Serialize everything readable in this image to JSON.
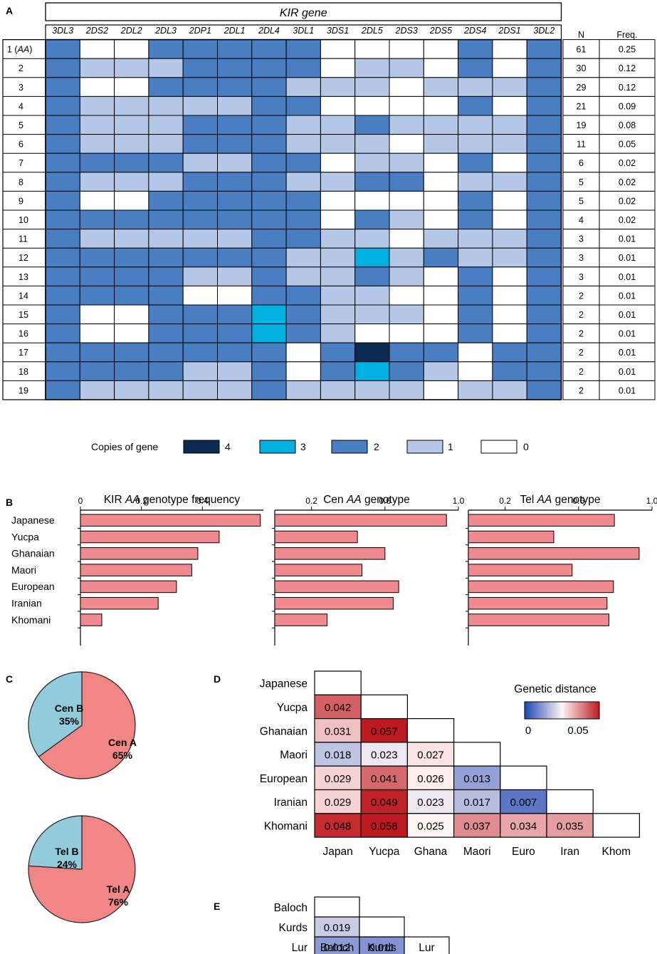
{
  "panel_labels": {
    "a": "A",
    "b": "B",
    "c": "C",
    "d": "D",
    "e": "E"
  },
  "colors": {
    "copy0": "#ffffff",
    "copy1": "#b4c7e7",
    "copy2": "#4a7ec2",
    "copy3": "#00b0e0",
    "copy4": "#0c2b52",
    "bar": "#f08a8e",
    "pie_a": "#f28585",
    "pie_b": "#92cbdb"
  },
  "chart_data": [
    {
      "type": "heatmap",
      "panel": "A",
      "title": "KIR gene",
      "genes": [
        "3DL3",
        "2DS2",
        "2DL2",
        "2DL3",
        "2DP1",
        "2DL1",
        "2DL4",
        "3DL1",
        "3DS1",
        "2DL5",
        "2DS3",
        "2DS5",
        "2DS4",
        "2DS1",
        "3DL2"
      ],
      "row_labels": [
        "1 (",
        "2",
        "3",
        "4",
        "5",
        "6",
        "7",
        "8",
        "9",
        "10",
        "11",
        "12",
        "13",
        "14",
        "15",
        "16",
        "17",
        "18",
        "19"
      ],
      "row1_italic": "AA",
      "row1_close": ")",
      "n_header": "N",
      "freq_header": "Freq.",
      "copies": [
        [
          2,
          0,
          0,
          2,
          2,
          2,
          2,
          2,
          0,
          0,
          0,
          0,
          2,
          0,
          2
        ],
        [
          2,
          1,
          1,
          1,
          2,
          2,
          2,
          2,
          0,
          1,
          1,
          0,
          2,
          0,
          2
        ],
        [
          2,
          0,
          0,
          2,
          2,
          2,
          2,
          1,
          1,
          1,
          0,
          1,
          1,
          1,
          2
        ],
        [
          2,
          1,
          1,
          1,
          1,
          1,
          2,
          2,
          0,
          0,
          0,
          0,
          2,
          0,
          2
        ],
        [
          2,
          1,
          1,
          1,
          2,
          2,
          2,
          1,
          1,
          2,
          1,
          1,
          1,
          1,
          2
        ],
        [
          2,
          1,
          1,
          1,
          2,
          2,
          2,
          1,
          1,
          1,
          0,
          1,
          1,
          1,
          2
        ],
        [
          2,
          2,
          2,
          2,
          1,
          1,
          2,
          2,
          0,
          1,
          1,
          0,
          2,
          0,
          2
        ],
        [
          2,
          1,
          1,
          1,
          2,
          2,
          2,
          1,
          1,
          2,
          2,
          0,
          1,
          1,
          2
        ],
        [
          2,
          0,
          0,
          2,
          2,
          2,
          2,
          2,
          0,
          0,
          0,
          0,
          2,
          0,
          2
        ],
        [
          2,
          2,
          2,
          2,
          2,
          2,
          2,
          2,
          0,
          2,
          1,
          0,
          2,
          0,
          2
        ],
        [
          2,
          1,
          1,
          1,
          1,
          1,
          2,
          2,
          1,
          1,
          0,
          1,
          1,
          1,
          2
        ],
        [
          2,
          2,
          2,
          2,
          2,
          2,
          2,
          1,
          1,
          3,
          1,
          2,
          1,
          1,
          2
        ],
        [
          2,
          2,
          2,
          2,
          1,
          1,
          2,
          1,
          1,
          2,
          1,
          0,
          2,
          0,
          2
        ],
        [
          2,
          2,
          2,
          2,
          0,
          0,
          2,
          2,
          1,
          1,
          0,
          0,
          2,
          0,
          2
        ],
        [
          2,
          0,
          0,
          2,
          2,
          2,
          3,
          2,
          1,
          1,
          1,
          0,
          2,
          0,
          2
        ],
        [
          2,
          0,
          0,
          2,
          2,
          2,
          3,
          2,
          1,
          0,
          0,
          0,
          2,
          0,
          2
        ],
        [
          2,
          2,
          2,
          2,
          2,
          2,
          2,
          0,
          2,
          4,
          2,
          2,
          0,
          2,
          2
        ],
        [
          2,
          2,
          2,
          2,
          1,
          1,
          2,
          0,
          2,
          3,
          2,
          1,
          0,
          2,
          2
        ],
        [
          2,
          1,
          1,
          1,
          1,
          1,
          2,
          1,
          1,
          1,
          1,
          0,
          1,
          1,
          2
        ]
      ],
      "n": [
        "61",
        "30",
        "29",
        "21",
        "19",
        "11",
        "6",
        "5",
        "5",
        "4",
        "3",
        "3",
        "3",
        "2",
        "2",
        "2",
        "2",
        "2",
        "2"
      ],
      "freq": [
        "0.25",
        "0.12",
        "0.12",
        "0.09",
        "0.08",
        "0.05",
        "0.02",
        "0.02",
        "0.02",
        "0.02",
        "0.01",
        "0.01",
        "0.01",
        "0.01",
        "0.01",
        "0.01",
        "0.01",
        "0.01",
        "0.01"
      ],
      "legend": {
        "title": "Copies of gene",
        "items": [
          {
            "label": "4",
            "value": 4
          },
          {
            "label": "3",
            "value": 3
          },
          {
            "label": "2",
            "value": 2
          },
          {
            "label": "1",
            "value": 1
          },
          {
            "label": "0",
            "value": 0
          }
        ]
      }
    },
    {
      "type": "bar",
      "panel": "B",
      "orientation": "horizontal",
      "title_pre": "KIR ",
      "title_it": "AA",
      "title_post": " genotype frequency",
      "categories": [
        "Japanese",
        "Yucpa",
        "Ghanaian",
        "Maori",
        "European",
        "Iranian",
        "Khomani"
      ],
      "values": [
        0.59,
        0.455,
        0.385,
        0.365,
        0.315,
        0.255,
        0.07
      ],
      "xlim": [
        0,
        0.6
      ],
      "ticks": [
        0,
        0.2,
        0.4
      ],
      "tick_labels": [
        "0",
        "0.2",
        "0.4"
      ]
    },
    {
      "type": "bar",
      "panel": "B",
      "orientation": "horizontal",
      "title_pre": "Cen ",
      "title_it": "AA",
      "title_post": " genotype",
      "categories": [
        "Japanese",
        "Yucpa",
        "Ghanaian",
        "Maori",
        "European",
        "Iranian",
        "Khomani"
      ],
      "values": [
        0.935,
        0.45,
        0.6,
        0.475,
        0.675,
        0.645,
        0.285
      ],
      "xlim": [
        0,
        1.0
      ],
      "ticks": [
        0.2,
        0.6,
        1.0
      ],
      "tick_labels": [
        "0.2",
        "0.6",
        "1.0"
      ]
    },
    {
      "type": "bar",
      "panel": "B",
      "orientation": "horizontal",
      "title_pre": "Tel ",
      "title_it": "AA",
      "title_post": " genotype",
      "categories": [
        "Japanese",
        "Yucpa",
        "Ghanaian",
        "Maori",
        "European",
        "Iranian",
        "Khomani"
      ],
      "values": [
        0.795,
        0.465,
        0.93,
        0.565,
        0.79,
        0.755,
        0.765
      ],
      "xlim": [
        0,
        1.0
      ],
      "ticks": [
        0.2,
        0.6,
        1.0
      ],
      "tick_labels": [
        "0.2",
        "0.6",
        "1.0"
      ]
    },
    {
      "type": "pie",
      "panel": "C",
      "labels": [
        "Cen A",
        "Cen B"
      ],
      "values": [
        65,
        35
      ],
      "value_labels": [
        "65%",
        "35%"
      ]
    },
    {
      "type": "pie",
      "panel": "C",
      "labels": [
        "Tel A",
        "Tel B"
      ],
      "values": [
        76,
        24
      ],
      "value_labels": [
        "76%",
        "24%"
      ]
    },
    {
      "type": "heatmap",
      "panel": "D",
      "title": "Genetic distance",
      "row_labels": [
        "Japanese",
        "Yucpa",
        "Ghanaian",
        "Maori",
        "European",
        "Iranian",
        "Khomani"
      ],
      "col_labels": [
        "Japan",
        "Yucpa",
        "Ghana",
        "Maori",
        "Euro",
        "Iran",
        "Khom"
      ],
      "values": [
        [],
        [
          "0.042"
        ],
        [
          "0.031",
          "0.057"
        ],
        [
          "0.018",
          "0.023",
          "0.027"
        ],
        [
          "0.029",
          "0.041",
          "0.026",
          "0.013"
        ],
        [
          "0.029",
          "0.049",
          "0.023",
          "0.017",
          "0.007"
        ],
        [
          "0.048",
          "0.058",
          "0.025",
          "0.037",
          "0.034",
          "0.035"
        ]
      ],
      "scale_min": 0,
      "scale_max": 0.05,
      "scale_mid": 0.025,
      "scale_labels": [
        "0",
        "0.05"
      ]
    },
    {
      "type": "heatmap",
      "panel": "E",
      "row_labels": [
        "Baloch",
        "Kurds",
        "Lur"
      ],
      "col_labels": [
        "Baloch",
        "Kurds",
        "Lur"
      ],
      "values": [
        [],
        [
          "0.019"
        ],
        [
          "0.012",
          "0.011"
        ]
      ],
      "scale_min": 0,
      "scale_max": 0.05,
      "scale_mid": 0.025
    }
  ]
}
